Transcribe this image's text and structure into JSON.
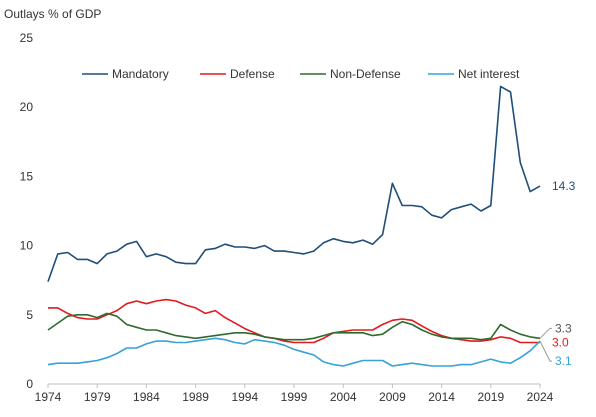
{
  "chart_data": {
    "type": "line",
    "ylabel": "Outlays % of GDP",
    "xlabel": "",
    "title": "",
    "ylim": [
      0,
      25
    ],
    "xlim": [
      1974,
      2024
    ],
    "y_ticks": [
      0,
      5,
      10,
      15,
      20,
      25
    ],
    "x_ticks": [
      1974,
      1979,
      1984,
      1989,
      1994,
      1999,
      2004,
      2009,
      2014,
      2019,
      2024
    ],
    "grid": false,
    "legend_position": "top",
    "x": [
      1974,
      1975,
      1976,
      1977,
      1978,
      1979,
      1980,
      1981,
      1982,
      1983,
      1984,
      1985,
      1986,
      1987,
      1988,
      1989,
      1990,
      1991,
      1992,
      1993,
      1994,
      1995,
      1996,
      1997,
      1998,
      1999,
      2000,
      2001,
      2002,
      2003,
      2004,
      2005,
      2006,
      2007,
      2008,
      2009,
      2010,
      2011,
      2012,
      2013,
      2014,
      2015,
      2016,
      2017,
      2018,
      2019,
      2020,
      2021,
      2022,
      2023,
      2024
    ],
    "series": [
      {
        "name": "Mandatory",
        "color": "#1f4e79",
        "end_label": "14.3",
        "end_label_color": "#1f4e79",
        "values": [
          7.4,
          9.4,
          9.5,
          9.0,
          9.0,
          8.7,
          9.4,
          9.6,
          10.1,
          10.3,
          9.2,
          9.4,
          9.2,
          8.8,
          8.7,
          8.7,
          9.7,
          9.8,
          10.1,
          9.9,
          9.9,
          9.8,
          10.0,
          9.6,
          9.6,
          9.5,
          9.4,
          9.6,
          10.2,
          10.5,
          10.3,
          10.2,
          10.4,
          10.1,
          10.8,
          14.5,
          12.9,
          12.9,
          12.8,
          12.2,
          12.0,
          12.6,
          12.8,
          13.0,
          12.5,
          12.9,
          21.5,
          21.1,
          16.0,
          13.9,
          14.3
        ]
      },
      {
        "name": "Defense",
        "color": "#e31a1c",
        "end_label": "3.0",
        "end_label_color": "#e31a1c",
        "values": [
          5.5,
          5.5,
          5.1,
          4.8,
          4.7,
          4.7,
          5.0,
          5.3,
          5.8,
          6.0,
          5.8,
          6.0,
          6.1,
          6.0,
          5.7,
          5.5,
          5.1,
          5.3,
          4.8,
          4.4,
          4.0,
          3.7,
          3.4,
          3.3,
          3.1,
          3.0,
          3.0,
          3.0,
          3.3,
          3.7,
          3.8,
          3.9,
          3.9,
          3.9,
          4.3,
          4.6,
          4.7,
          4.6,
          4.2,
          3.8,
          3.5,
          3.3,
          3.2,
          3.1,
          3.1,
          3.2,
          3.4,
          3.3,
          3.0,
          3.0,
          3.0
        ]
      },
      {
        "name": "Non-Defense",
        "color": "#2e6b2e",
        "end_label": "3.3",
        "end_label_color": "#555555",
        "values": [
          3.9,
          4.4,
          4.9,
          5.0,
          5.0,
          4.8,
          5.1,
          4.9,
          4.3,
          4.1,
          3.9,
          3.9,
          3.7,
          3.5,
          3.4,
          3.3,
          3.4,
          3.5,
          3.6,
          3.7,
          3.7,
          3.6,
          3.4,
          3.3,
          3.2,
          3.2,
          3.2,
          3.3,
          3.5,
          3.7,
          3.7,
          3.7,
          3.7,
          3.5,
          3.6,
          4.1,
          4.5,
          4.3,
          3.9,
          3.6,
          3.4,
          3.3,
          3.3,
          3.3,
          3.2,
          3.3,
          4.3,
          3.9,
          3.6,
          3.4,
          3.3
        ]
      },
      {
        "name": "Net interest",
        "color": "#36a2d8",
        "end_label": "3.1",
        "end_label_color": "#36a2d8",
        "values": [
          1.4,
          1.5,
          1.5,
          1.5,
          1.6,
          1.7,
          1.9,
          2.2,
          2.6,
          2.6,
          2.9,
          3.1,
          3.1,
          3.0,
          3.0,
          3.1,
          3.2,
          3.3,
          3.2,
          3.0,
          2.9,
          3.2,
          3.1,
          3.0,
          2.8,
          2.5,
          2.3,
          2.1,
          1.6,
          1.4,
          1.3,
          1.5,
          1.7,
          1.7,
          1.7,
          1.3,
          1.4,
          1.5,
          1.4,
          1.3,
          1.3,
          1.3,
          1.4,
          1.4,
          1.6,
          1.8,
          1.6,
          1.5,
          1.9,
          2.4,
          3.1
        ]
      }
    ]
  }
}
